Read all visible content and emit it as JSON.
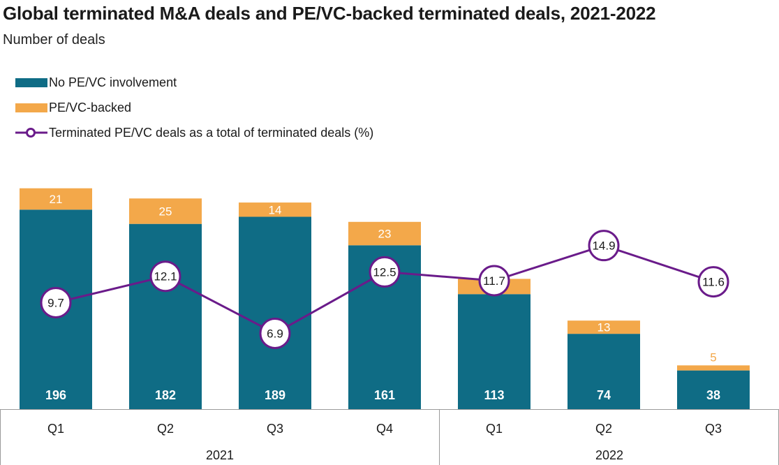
{
  "chart_data": {
    "type": "bar",
    "title": "Global terminated M&A deals and PE/VC-backed terminated deals, 2021-2022",
    "subtitle": "Number of deals",
    "stacked": true,
    "categories": [
      "Q1",
      "Q2",
      "Q3",
      "Q4",
      "Q1",
      "Q2",
      "Q3"
    ],
    "groups": [
      {
        "label": "2021",
        "count": 4
      },
      {
        "label": "2022",
        "count": 3
      }
    ],
    "series": [
      {
        "name": "No PE/VC involvement",
        "type": "bar",
        "color": "#0f6c85",
        "values": [
          196,
          182,
          189,
          161,
          113,
          74,
          38
        ]
      },
      {
        "name": "PE/VC-backed",
        "type": "bar",
        "color": "#f3a84a",
        "values": [
          21,
          25,
          14,
          23,
          15,
          13,
          5
        ]
      },
      {
        "name": "Terminated PE/VC deals as a total of terminated deals (%)",
        "type": "line",
        "color": "#6a1b8a",
        "values": [
          9.7,
          12.1,
          6.9,
          12.5,
          11.7,
          14.9,
          11.6
        ]
      }
    ],
    "ylim": [
      0,
      225
    ],
    "line_ylim": [
      0,
      22
    ],
    "grid": false,
    "legend_position": "top-left"
  }
}
